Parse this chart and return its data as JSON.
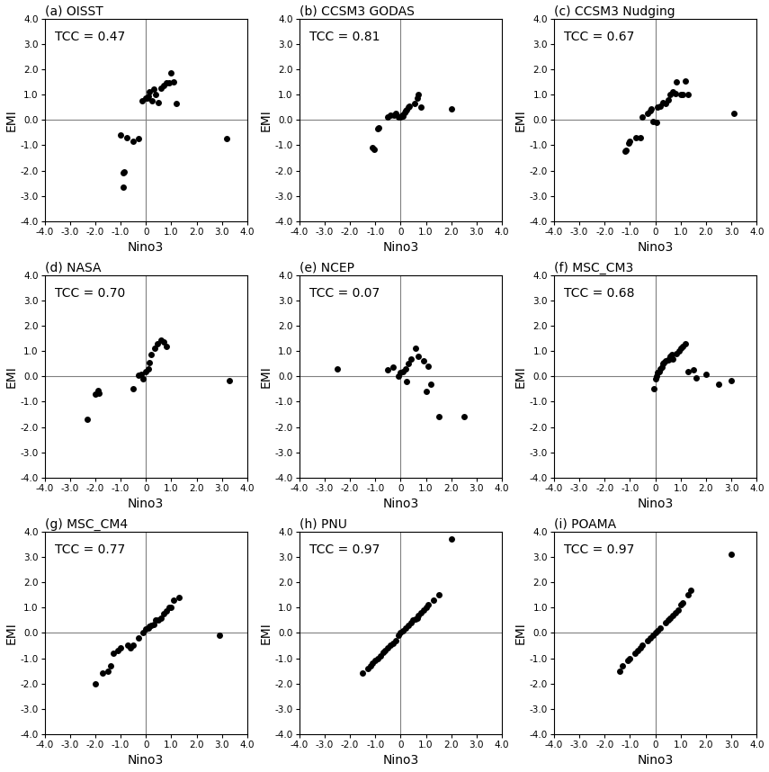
{
  "panels": [
    {
      "label": "(a) OISST",
      "tcc": "TCC = 0.47",
      "x": [
        -0.9,
        -0.85,
        -0.9,
        -1.0,
        -0.75,
        -0.5,
        -0.3,
        -0.15,
        0.0,
        0.05,
        0.1,
        0.15,
        0.25,
        0.3,
        0.4,
        0.5,
        0.6,
        0.7,
        0.8,
        0.9,
        1.0,
        1.1,
        1.2,
        3.2
      ],
      "y": [
        -2.1,
        -2.05,
        -2.65,
        -0.6,
        -0.7,
        -0.85,
        -0.75,
        0.75,
        0.85,
        0.85,
        0.95,
        1.1,
        0.75,
        1.2,
        1.0,
        0.7,
        1.25,
        1.35,
        1.45,
        1.45,
        1.85,
        1.5,
        0.65,
        -0.75
      ]
    },
    {
      "label": "(b) CCSM3 GODAS",
      "tcc": "TCC = 0.81",
      "x": [
        -1.1,
        -1.05,
        -0.9,
        -0.85,
        -0.5,
        -0.4,
        -0.25,
        -0.2,
        -0.1,
        0.0,
        0.05,
        0.1,
        0.15,
        0.2,
        0.25,
        0.3,
        0.35,
        0.55,
        0.65,
        0.7,
        0.8,
        2.0
      ],
      "y": [
        -1.1,
        -1.15,
        -0.35,
        -0.3,
        0.1,
        0.2,
        0.2,
        0.25,
        0.1,
        0.1,
        0.2,
        0.15,
        0.3,
        0.35,
        0.4,
        0.5,
        0.55,
        0.65,
        0.85,
        1.0,
        0.5,
        0.45
      ]
    },
    {
      "label": "(c) CCSM3 Nudging",
      "tcc": "TCC = 0.67",
      "x": [
        -1.2,
        -1.15,
        -1.05,
        -1.0,
        -0.75,
        -0.6,
        -0.5,
        -0.3,
        -0.2,
        -0.15,
        -0.1,
        0.05,
        0.1,
        0.2,
        0.3,
        0.4,
        0.5,
        0.6,
        0.7,
        0.8,
        0.85,
        1.0,
        1.1,
        1.2,
        1.3,
        3.1
      ],
      "y": [
        -1.25,
        -1.2,
        -0.9,
        -0.85,
        -0.7,
        -0.7,
        0.1,
        0.25,
        0.35,
        0.45,
        -0.05,
        -0.1,
        0.5,
        0.55,
        0.7,
        0.65,
        0.8,
        1.0,
        1.1,
        1.05,
        1.5,
        1.0,
        1.0,
        1.55,
        1.0,
        0.25
      ]
    },
    {
      "label": "(d) NASA",
      "tcc": "TCC = 0.70",
      "x": [
        -2.3,
        -2.0,
        -1.9,
        -1.85,
        -0.5,
        -0.3,
        -0.2,
        -0.1,
        0.0,
        0.1,
        0.15,
        0.2,
        0.35,
        0.45,
        0.6,
        0.7,
        0.8,
        3.3
      ],
      "y": [
        -1.7,
        -0.7,
        -0.55,
        -0.65,
        -0.5,
        0.05,
        0.1,
        -0.1,
        0.2,
        0.3,
        0.55,
        0.85,
        1.1,
        1.3,
        1.45,
        1.35,
        1.2,
        -0.15
      ]
    },
    {
      "label": "(e) NCEP",
      "tcc": "TCC = 0.07",
      "x": [
        -2.5,
        -0.5,
        -0.3,
        -0.1,
        0.0,
        0.1,
        0.2,
        0.25,
        0.3,
        0.4,
        0.6,
        0.7,
        0.9,
        1.0,
        1.1,
        1.2,
        1.5,
        2.5
      ],
      "y": [
        0.3,
        0.25,
        0.35,
        0.0,
        0.15,
        0.2,
        0.3,
        -0.2,
        0.5,
        0.7,
        1.1,
        0.8,
        0.6,
        -0.6,
        0.4,
        -0.3,
        -1.6,
        -1.6
      ]
    },
    {
      "label": "(f) MSC_CM3",
      "tcc": "TCC = 0.68",
      "x": [
        0.1,
        0.15,
        0.2,
        0.25,
        0.3,
        0.35,
        0.4,
        0.5,
        0.55,
        0.6,
        0.65,
        0.7,
        0.85,
        0.95,
        1.0,
        1.1,
        1.2,
        1.3,
        1.5,
        1.6,
        2.0,
        2.5,
        3.0,
        -0.05,
        0.0,
        0.05
      ],
      "y": [
        0.15,
        0.2,
        0.3,
        0.35,
        0.5,
        0.55,
        0.6,
        0.65,
        0.7,
        0.8,
        0.85,
        0.7,
        0.9,
        1.0,
        1.1,
        1.2,
        1.3,
        0.2,
        0.25,
        -0.05,
        0.1,
        -0.3,
        -0.15,
        -0.5,
        -0.1,
        0.0
      ]
    },
    {
      "label": "(g) MSC_CM4",
      "tcc": "TCC = 0.77",
      "x": [
        -2.0,
        -1.7,
        -1.5,
        -1.4,
        -1.3,
        -1.1,
        -1.0,
        -0.7,
        -0.6,
        -0.5,
        -0.3,
        -0.1,
        0.0,
        0.1,
        0.15,
        0.2,
        0.3,
        0.4,
        0.5,
        0.6,
        0.7,
        0.8,
        0.9,
        1.0,
        1.1,
        1.3,
        2.9
      ],
      "y": [
        -2.0,
        -1.6,
        -1.5,
        -1.3,
        -0.8,
        -0.7,
        -0.6,
        -0.5,
        -0.6,
        -0.5,
        -0.2,
        0.0,
        0.15,
        0.2,
        0.25,
        0.3,
        0.35,
        0.5,
        0.5,
        0.6,
        0.75,
        0.85,
        1.0,
        1.0,
        1.3,
        1.4,
        -0.1
      ]
    },
    {
      "label": "(h) PNU",
      "tcc": "TCC = 0.97",
      "x": [
        -1.5,
        -1.3,
        -1.2,
        -1.1,
        -1.0,
        -0.9,
        -0.8,
        -0.7,
        -0.6,
        -0.5,
        -0.4,
        -0.3,
        -0.2,
        -0.1,
        0.0,
        0.1,
        0.2,
        0.3,
        0.4,
        0.5,
        0.6,
        0.65,
        0.7,
        0.8,
        0.9,
        1.0,
        1.1,
        1.3,
        1.5,
        2.0
      ],
      "y": [
        -1.6,
        -1.4,
        -1.3,
        -1.2,
        -1.1,
        -1.0,
        -0.9,
        -0.75,
        -0.7,
        -0.6,
        -0.5,
        -0.4,
        -0.3,
        -0.1,
        0.0,
        0.1,
        0.2,
        0.3,
        0.4,
        0.5,
        0.55,
        0.6,
        0.7,
        0.8,
        0.9,
        1.0,
        1.1,
        1.3,
        1.5,
        3.7
      ]
    },
    {
      "label": "(i) POAMA",
      "tcc": "TCC = 0.97",
      "x": [
        -1.4,
        -1.3,
        -1.1,
        -1.0,
        -0.8,
        -0.7,
        -0.6,
        -0.5,
        -0.3,
        -0.2,
        -0.1,
        0.0,
        0.1,
        0.2,
        0.4,
        0.5,
        0.6,
        0.7,
        0.8,
        0.9,
        1.0,
        1.1,
        1.3,
        1.4,
        3.0
      ],
      "y": [
        -1.5,
        -1.3,
        -1.1,
        -1.0,
        -0.8,
        -0.7,
        -0.6,
        -0.5,
        -0.3,
        -0.2,
        -0.1,
        0.0,
        0.1,
        0.2,
        0.4,
        0.5,
        0.6,
        0.7,
        0.8,
        0.9,
        1.1,
        1.2,
        1.5,
        1.7,
        3.1
      ]
    }
  ],
  "xlim": [
    -4.0,
    4.0
  ],
  "ylim": [
    -4.0,
    4.0
  ],
  "xticks": [
    -4,
    -3,
    -2,
    -1,
    0,
    1,
    2,
    3,
    4
  ],
  "yticks": [
    -4,
    -3,
    -2,
    -1,
    0,
    1,
    2,
    3,
    4
  ],
  "xtick_labels": [
    "-4.0",
    "-3.0",
    "-2.0",
    "-1.0",
    "0",
    "1.0",
    "2.0",
    "3.0",
    "4.0"
  ],
  "ytick_labels": [
    "-4.0",
    "-3.0",
    "-2.0",
    "-1.0",
    "0.0",
    "1.0",
    "2.0",
    "3.0",
    "4.0"
  ],
  "xlabel": "Nino3",
  "ylabel": "EMI",
  "marker_color": "black",
  "marker_size": 5,
  "bg_color": "white",
  "line_color": "#808080",
  "title_fontsize": 10,
  "tick_fontsize": 7.5,
  "label_fontsize": 10,
  "tcc_fontsize": 10
}
